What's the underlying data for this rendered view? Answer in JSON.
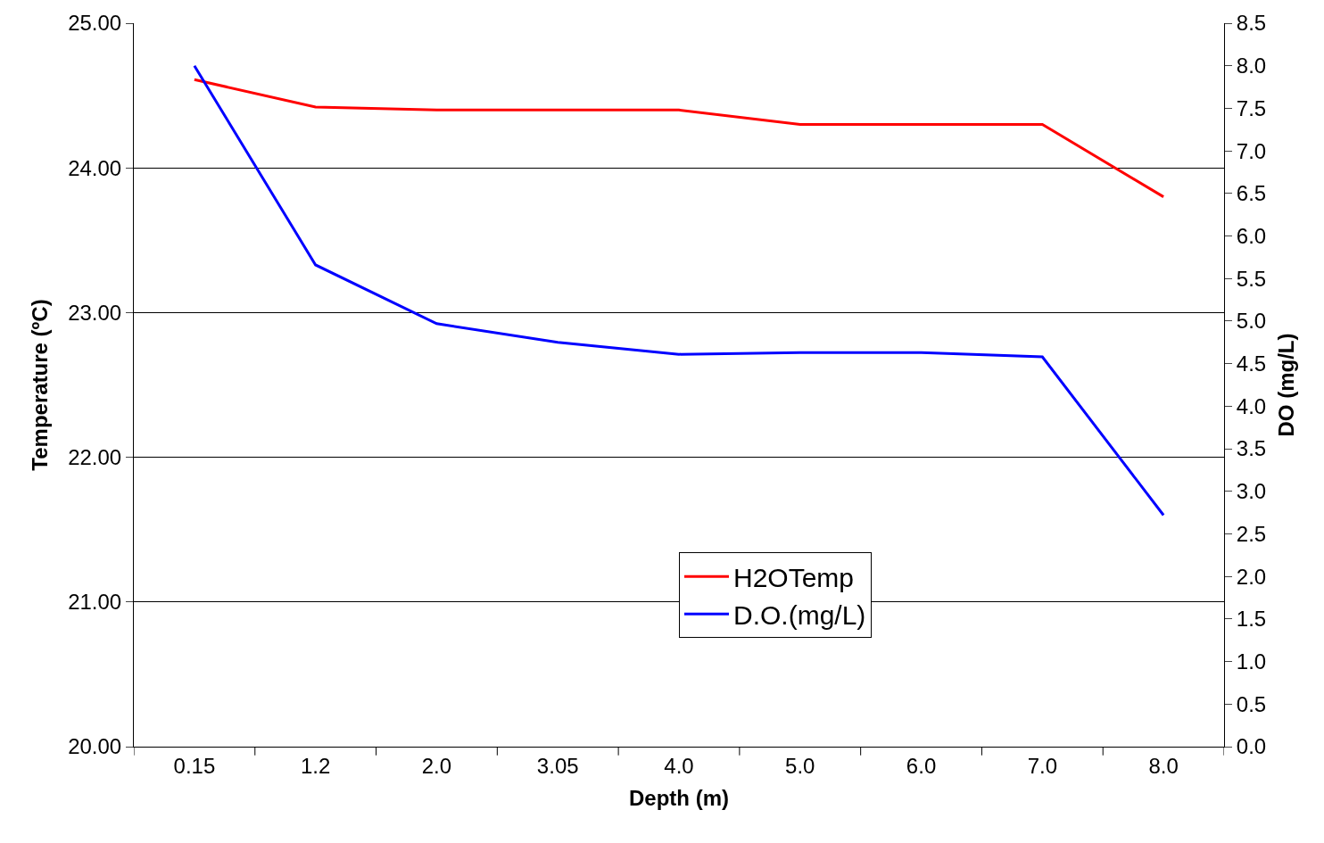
{
  "chart_data": {
    "type": "line",
    "xlabel": "Depth (m)",
    "ylabel": "Temperature (ºC)",
    "y2label": "DO (mg/L)",
    "categories": [
      "0.15",
      "1.2",
      "2.0",
      "3.05",
      "4.0",
      "5.0",
      "6.0",
      "7.0",
      "8.0"
    ],
    "series": [
      {
        "name": "H2OTemp",
        "color": "#ff0000",
        "values": [
          24.61,
          24.42,
          24.4,
          24.4,
          24.4,
          24.3,
          24.3,
          24.3,
          23.8
        ]
      },
      {
        "name": "D.O.(mg/L)",
        "color": "#0000ff",
        "axis": "y2",
        "values": [
          8.0,
          5.66,
          4.97,
          4.75,
          4.61,
          4.63,
          4.63,
          4.58,
          2.72
        ]
      }
    ],
    "ylim": [
      20,
      25
    ],
    "yticks": [
      {
        "value": 20,
        "label": "20.00"
      },
      {
        "value": 21,
        "label": "21.00"
      },
      {
        "value": 22,
        "label": "22.00"
      },
      {
        "value": 23,
        "label": "23.00"
      },
      {
        "value": 24,
        "label": "24.00"
      },
      {
        "value": 25,
        "label": "25.00"
      }
    ],
    "y2lim": [
      0,
      8.5
    ],
    "y2ticks": [
      {
        "value": 0,
        "label": "0.0"
      },
      0.5,
      {
        "value": 1,
        "label": "1.0"
      },
      1.5,
      {
        "value": 2,
        "label": "2.0"
      },
      2.5,
      {
        "value": 3,
        "label": "3.0"
      },
      3.5,
      {
        "value": 4,
        "label": "4.0"
      },
      4.5,
      {
        "value": 5,
        "label": "5.0"
      },
      5.5,
      {
        "value": 6,
        "label": "6.0"
      },
      6.5,
      {
        "value": 7,
        "label": "7.0"
      },
      7.5,
      {
        "value": 8,
        "label": "8.0"
      },
      8.5
    ],
    "grid": "y",
    "legend": "bottom",
    "marker": "none",
    "line_style": "solid"
  }
}
